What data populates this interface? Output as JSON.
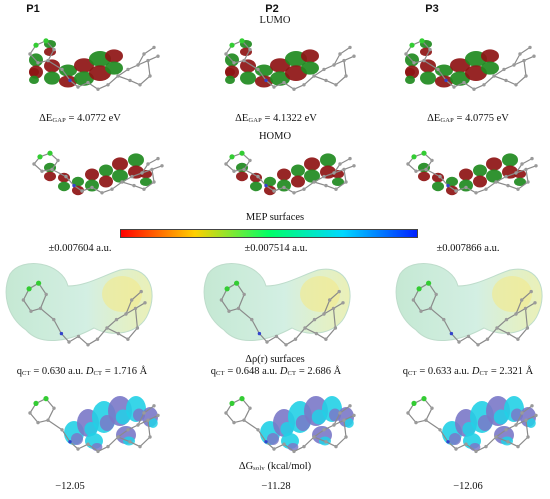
{
  "columns": [
    "P1",
    "P2",
    "P3"
  ],
  "sections": {
    "lumo": "LUMO",
    "homo": "HOMO",
    "mep": "MEP surfaces",
    "drho": "Δρ(r) surfaces",
    "dg": "ΔG",
    "dg_sub": "solv",
    "dg_unit": " (kcal/mol)"
  },
  "gap": {
    "prefix": "ΔE",
    "sub": "GAP",
    "values": [
      "= 4.0772 eV",
      "= 4.1322 eV",
      "= 4.0775 eV"
    ]
  },
  "mep_range": [
    "±0.007604 a.u.",
    "±0.007514 a.u.",
    "±0.007866 a.u."
  ],
  "ct": {
    "q": "q",
    "q_sub": "CT",
    "d": "D",
    "d_sub": "CT",
    "q_values": [
      "= 0.630 a.u.",
      "= 0.648 a.u.",
      "= 0.633 a.u."
    ],
    "d_values": [
      "= 1.716 Å",
      "= 2.686 Å",
      "= 2.321 Å"
    ]
  },
  "dg_values": [
    "−12.05",
    "−11.28",
    "−12.06"
  ],
  "colors": {
    "orbital_green": "#1f8a1f",
    "orbital_red": "#8e1414",
    "drho_cyan": "#22d0e6",
    "drho_violet": "#7a78c8",
    "mep_gradient": [
      "#ff0000",
      "#ffd000",
      "#00ff66",
      "#00d8ff",
      "#0020ff"
    ]
  }
}
